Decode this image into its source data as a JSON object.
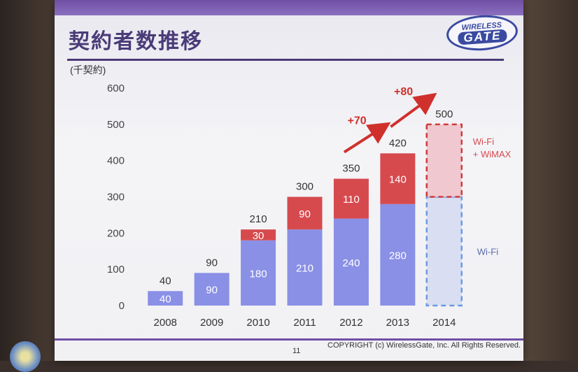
{
  "slide": {
    "title": "契約者数推移",
    "unit": "(千契約)",
    "logo_top": "WIRELESS",
    "logo_bottom": "GATE",
    "page_number": "11",
    "copyright": "COPYRIGHT (c) WirelessGate, Inc. All Rights Reserved."
  },
  "colors": {
    "wifi": "#8a90e6",
    "wimax": "#d64a4e",
    "wifi_forecast": "#d9def2",
    "wimax_forecast": "#f0c8d0",
    "forecast_border_wifi": "#6a9ae0",
    "forecast_border_wimax": "#d03a3a",
    "arrow": "#d0302c"
  },
  "chart_data": {
    "type": "bar",
    "stacked": true,
    "categories": [
      "2008",
      "2009",
      "2010",
      "2011",
      "2012",
      "2013",
      "2014"
    ],
    "series": [
      {
        "name": "Wi-Fi",
        "values": [
          40,
          90,
          180,
          210,
          240,
          280,
          300
        ],
        "labels": [
          "40",
          "90",
          "180",
          "210",
          "240",
          "280",
          ""
        ]
      },
      {
        "name": "Wi-Fi + WiMAX",
        "values": [
          0,
          0,
          30,
          90,
          110,
          140,
          200
        ],
        "labels": [
          "",
          "",
          "30",
          "90",
          "110",
          "140",
          ""
        ]
      }
    ],
    "totals": [
      "40",
      "90",
      "210",
      "300",
      "350",
      "420",
      "500"
    ],
    "forecast_category": "2014",
    "forecast_labels": {
      "upper": [
        "Wi-Fi",
        "+ WiMAX"
      ],
      "lower": "Wi-Fi"
    },
    "ylim": [
      0,
      600
    ],
    "yticks": [
      0,
      100,
      200,
      300,
      400,
      500,
      600
    ],
    "growth_annotations": [
      {
        "from": "2012",
        "to": "2013",
        "text": "+70"
      },
      {
        "from": "2013",
        "to": "2014",
        "text": "+80"
      }
    ],
    "grid": false,
    "legend": "none"
  }
}
